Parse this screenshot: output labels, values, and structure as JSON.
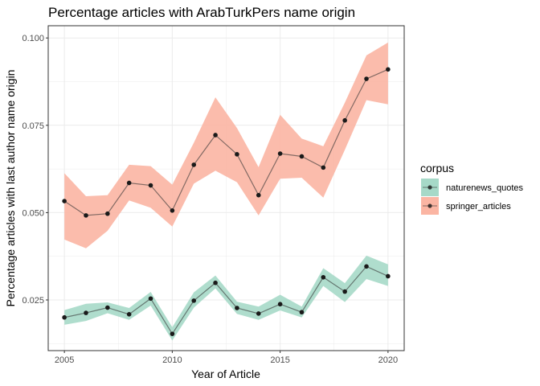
{
  "chart_data": {
    "type": "line",
    "title": "Percentage articles with ArabTurkPers name origin",
    "xlabel": "Year of Article",
    "ylabel": "Percentage articles with last author name origin",
    "xlim": [
      2004.25,
      2020.75
    ],
    "ylim": [
      0.0105,
      0.1035
    ],
    "x_ticks": [
      2005,
      2010,
      2015,
      2020
    ],
    "x_tick_labels": [
      "2005",
      "2010",
      "2015",
      "2020"
    ],
    "y_ticks": [
      0.025,
      0.05,
      0.075,
      0.1
    ],
    "y_tick_labels": [
      "0.025",
      "0.050",
      "0.075",
      "0.100"
    ],
    "grid": true,
    "legend": {
      "title": "corpus",
      "position": "right"
    },
    "x": [
      2005,
      2006,
      2007,
      2008,
      2009,
      2010,
      2011,
      2012,
      2013,
      2014,
      2015,
      2016,
      2017,
      2018,
      2019,
      2020
    ],
    "series": [
      {
        "name": "naturenews_quotes",
        "color": "#1b9e77",
        "ribbon_color": "#a6d9c8",
        "values": [
          0.02,
          0.0213,
          0.0228,
          0.0209,
          0.0254,
          0.0153,
          0.0248,
          0.0299,
          0.0227,
          0.0211,
          0.0238,
          0.0215,
          0.0315,
          0.0274,
          0.0346,
          0.0318
        ],
        "lower": [
          0.0179,
          0.019,
          0.0212,
          0.0193,
          0.0234,
          0.0134,
          0.0228,
          0.0283,
          0.021,
          0.0193,
          0.022,
          0.02,
          0.029,
          0.0244,
          0.031,
          0.029
        ],
        "upper": [
          0.0221,
          0.0239,
          0.0243,
          0.0227,
          0.0273,
          0.0172,
          0.0272,
          0.032,
          0.0245,
          0.0231,
          0.0265,
          0.0231,
          0.0341,
          0.0298,
          0.0377,
          0.0352
        ]
      },
      {
        "name": "springer_articles",
        "color": "#e7826a",
        "ribbon_color": "#fbb5a3",
        "values": [
          0.0533,
          0.0492,
          0.0497,
          0.0585,
          0.0578,
          0.0506,
          0.0637,
          0.0722,
          0.0667,
          0.055,
          0.0669,
          0.0661,
          0.0629,
          0.0764,
          0.0883,
          0.091
        ],
        "lower": [
          0.0423,
          0.0398,
          0.0448,
          0.0535,
          0.0514,
          0.046,
          0.0583,
          0.062,
          0.0587,
          0.0492,
          0.0597,
          0.06,
          0.0543,
          0.068,
          0.0822,
          0.081
        ],
        "upper": [
          0.0613,
          0.0547,
          0.055,
          0.0637,
          0.0633,
          0.058,
          0.07,
          0.083,
          0.0742,
          0.063,
          0.078,
          0.0712,
          0.069,
          0.0815,
          0.095,
          0.0987
        ]
      }
    ]
  }
}
